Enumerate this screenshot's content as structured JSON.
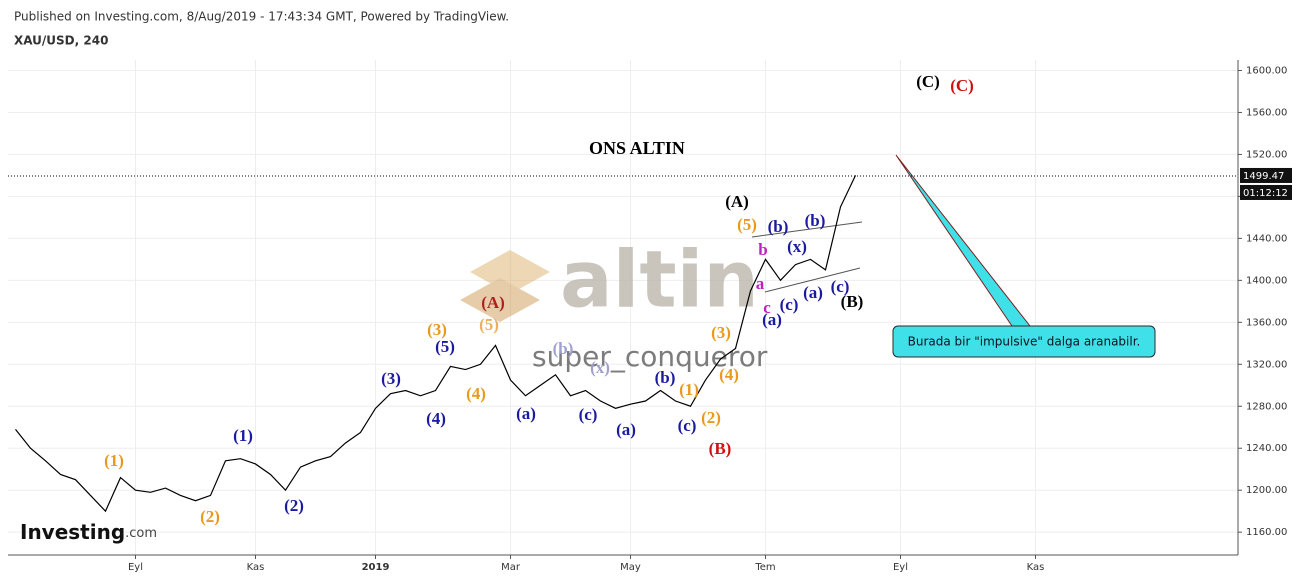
{
  "chart_data": {
    "type": "line",
    "header": "Published on Investing.com, 8/Aug/2019 - 17:43:34 GMT, Powered by TradingView.",
    "symbol": "XAU/USD, 240",
    "title": "ONS ALTIN",
    "watermark": "altin",
    "author": "super_conqueror",
    "logo": "Investing",
    "logo_suffix": ".com",
    "callout": "Burada bir \"impulsive\" dalga aranabilr.",
    "last_value": 1499.47,
    "countdown": "01:12:12",
    "categories": [
      null,
      null,
      null,
      null,
      null,
      null,
      null,
      null,
      "Eyl",
      null,
      null,
      null,
      null,
      null,
      null,
      null,
      "Kas",
      null,
      null,
      null,
      null,
      null,
      null,
      null,
      "2019",
      null,
      null,
      null,
      null,
      null,
      null,
      null,
      null,
      "Mar",
      null,
      null,
      null,
      null,
      null,
      null,
      null,
      "May",
      null,
      null,
      null,
      null,
      null,
      null,
      null,
      null,
      "Tem",
      null,
      null,
      null,
      null,
      null,
      null,
      null,
      null,
      "Eyl",
      null,
      null,
      null,
      null,
      null,
      null,
      null,
      null,
      "Kas",
      null,
      null,
      null,
      null,
      null,
      null,
      null,
      null,
      null,
      null,
      null,
      null,
      null
    ],
    "series": [
      {
        "name": "XAU/USD",
        "color": "#000000",
        "values": [
          1258,
          1240,
          1228,
          1215,
          1210,
          1195,
          1180,
          1212,
          1200,
          1198,
          1202,
          1195,
          1190,
          1195,
          1228,
          1230,
          1225,
          1215,
          1200,
          1222,
          1228,
          1232,
          1245,
          1255,
          1278,
          1292,
          1295,
          1290,
          1295,
          1318,
          1315,
          1320,
          1338,
          1305,
          1290,
          1300,
          1310,
          1290,
          1295,
          1285,
          1278,
          1282,
          1285,
          1295,
          1285,
          1280,
          1305,
          1325,
          1335,
          1390,
          1420,
          1400,
          1415,
          1420,
          1410,
          1470,
          1500,
          null,
          null,
          null,
          null,
          null,
          null,
          null,
          null,
          null,
          null,
          null,
          null,
          null,
          null,
          null,
          null,
          null,
          null,
          null,
          null,
          null,
          null,
          null,
          null,
          null
        ]
      }
    ],
    "ylim": [
      1143,
      1610
    ],
    "yticks": [
      {
        "value": 1160,
        "label": "1160.00"
      },
      {
        "value": 1200,
        "label": "1200.00"
      },
      {
        "value": 1240,
        "label": "1240.00"
      },
      {
        "value": 1280,
        "label": "1280.00"
      },
      {
        "value": 1320,
        "label": "1320.00"
      },
      {
        "value": 1360,
        "label": "1360.00"
      },
      {
        "value": 1400,
        "label": "1400.00"
      },
      {
        "value": 1440,
        "label": "1440.00"
      },
      {
        "value": 1480,
        "label": "1480.00"
      },
      {
        "value": 1520,
        "label": "1520.00"
      },
      {
        "value": 1560,
        "label": "1560.00"
      },
      {
        "value": 1600,
        "label": "1600.00"
      }
    ],
    "grid": true,
    "annotations": [
      {
        "text": "(1)",
        "color": "#e89a1c"
      },
      {
        "text": "(2)",
        "color": "#e89a1c"
      },
      {
        "text": "(1)",
        "color": "#1a1aa0"
      },
      {
        "text": "(2)",
        "color": "#1a1aa0"
      },
      {
        "text": "(3)",
        "color": "#1a1aa0"
      },
      {
        "text": "(4)",
        "color": "#1a1aa0"
      },
      {
        "text": "(5)",
        "color": "#1a1aa0"
      },
      {
        "text": "(3)",
        "color": "#e89a1c"
      },
      {
        "text": "(4)",
        "color": "#e89a1c"
      },
      {
        "text": "(5)",
        "color": "#e8b060"
      },
      {
        "text": "(A)",
        "color": "#b02020"
      },
      {
        "text": "(a)",
        "color": "#1a1aa0"
      },
      {
        "text": "(b)",
        "color": "#a0a0d0"
      },
      {
        "text": "(c)",
        "color": "#1a1aa0"
      },
      {
        "text": "(x)",
        "color": "#a0a0d0"
      },
      {
        "text": "(a)",
        "color": "#1a1aa0"
      },
      {
        "text": "(b)",
        "color": "#1a1aa0"
      },
      {
        "text": "(c)",
        "color": "#1a1aa0"
      },
      {
        "text": "(1)",
        "color": "#e89a1c"
      },
      {
        "text": "(2)",
        "color": "#e89a1c"
      },
      {
        "text": "(3)",
        "color": "#e89a1c"
      },
      {
        "text": "(4)",
        "color": "#e89a1c"
      },
      {
        "text": "(B)",
        "color": "#d01010"
      },
      {
        "text": "(A)",
        "color": "#000000"
      },
      {
        "text": "(5)",
        "color": "#e89a1c"
      },
      {
        "text": "(b)",
        "color": "#1a1aa0"
      },
      {
        "text": "b",
        "color": "#c020c0"
      },
      {
        "text": "a",
        "color": "#c020c0"
      },
      {
        "text": "c",
        "color": "#c020c0"
      },
      {
        "text": "(a)",
        "color": "#1a1aa0"
      },
      {
        "text": "(c)",
        "color": "#1a1aa0"
      },
      {
        "text": "(x)",
        "color": "#1a1aa0"
      },
      {
        "text": "(a)",
        "color": "#1a1aa0"
      },
      {
        "text": "(b)",
        "color": "#1a1aa0"
      },
      {
        "text": "(c)",
        "color": "#1a1aa0"
      },
      {
        "text": "(B)",
        "color": "#000000"
      },
      {
        "text": "(C)",
        "color": "#000000"
      },
      {
        "text": "(C)",
        "color": "#d01010"
      }
    ]
  }
}
